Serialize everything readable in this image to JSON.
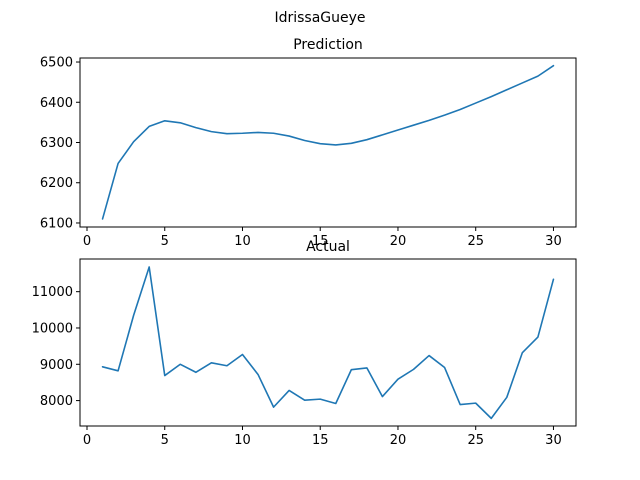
{
  "figure": {
    "suptitle": "IdrissaGueye",
    "line_color": "#1f77b4"
  },
  "chart_data": [
    {
      "type": "line",
      "title": "Prediction",
      "xlabel": "",
      "ylabel": "",
      "xlim": [
        -0.45,
        31.45
      ],
      "ylim": [
        6090,
        6510
      ],
      "xticks": [
        0,
        5,
        10,
        15,
        20,
        25,
        30
      ],
      "yticks": [
        6100,
        6200,
        6300,
        6400,
        6500
      ],
      "grid": false,
      "series": [
        {
          "x": [
            1,
            2,
            3,
            4,
            5,
            6,
            7,
            8,
            9,
            10,
            11,
            12,
            13,
            14,
            15,
            16,
            17,
            18,
            19,
            20,
            21,
            22,
            23,
            24,
            25,
            26,
            27,
            28,
            29,
            30
          ],
          "values": [
            6110,
            6248,
            6302,
            6340,
            6354,
            6349,
            6337,
            6327,
            6322,
            6323,
            6325,
            6323,
            6316,
            6305,
            6297,
            6294,
            6298,
            6307,
            6319,
            6331,
            6343,
            6355,
            6368,
            6382,
            6398,
            6414,
            6431,
            6448,
            6465,
            6491
          ]
        }
      ]
    },
    {
      "type": "line",
      "title": "Actual",
      "xlabel": "",
      "ylabel": "",
      "xlim": [
        -0.45,
        31.45
      ],
      "ylim": [
        7300,
        11900
      ],
      "xticks": [
        0,
        5,
        10,
        15,
        20,
        25,
        30
      ],
      "yticks": [
        8000,
        9000,
        10000,
        11000
      ],
      "grid": false,
      "series": [
        {
          "x": [
            1,
            2,
            3,
            4,
            5,
            6,
            7,
            8,
            9,
            10,
            11,
            12,
            13,
            14,
            15,
            16,
            17,
            18,
            19,
            20,
            21,
            22,
            23,
            24,
            25,
            26,
            27,
            28,
            29,
            30
          ],
          "values": [
            8930,
            8820,
            10350,
            11680,
            8690,
            9000,
            8780,
            9040,
            8960,
            9270,
            8720,
            7820,
            8280,
            8010,
            8040,
            7920,
            8850,
            8900,
            8110,
            8590,
            8860,
            9240,
            8910,
            7890,
            7930,
            7510,
            8090,
            9320,
            9750,
            11340
          ]
        }
      ]
    }
  ]
}
